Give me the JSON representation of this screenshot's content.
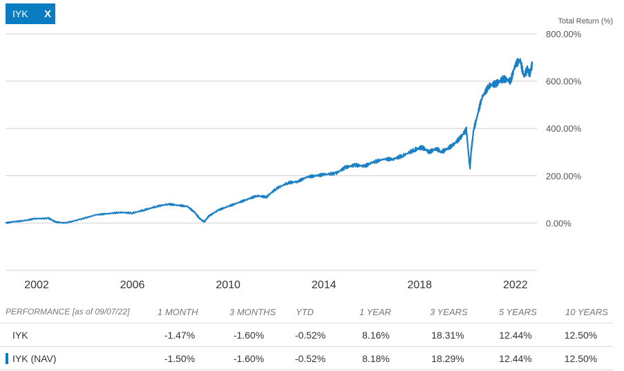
{
  "colors": {
    "accent": "#0a7cc2",
    "grid": "#cfcfcf",
    "line": "#1a7fc4"
  },
  "ticker_chip": {
    "label": "IYK",
    "close_label": "X",
    "close_icon": "close-icon"
  },
  "chart_data": {
    "type": "line",
    "title": "",
    "ylabel": "Total Return (%)",
    "xlabel": "",
    "x_ticks": [
      "2002",
      "2006",
      "2010",
      "2014",
      "2018",
      "2022"
    ],
    "y_ticks": [
      "800.00%",
      "600.00%",
      "400.00%",
      "200.00%",
      "0.00%"
    ],
    "y_tick_values": [
      800,
      600,
      400,
      200,
      0
    ],
    "ylim": [
      -200,
      800
    ],
    "xlim": [
      2000.7,
      2022.9
    ],
    "grid": true,
    "series": [
      {
        "name": "IYK",
        "x": [
          2000.7,
          2001.0,
          2001.5,
          2001.9,
          2002.5,
          2002.8,
          2003.2,
          2003.8,
          2004.5,
          2005.0,
          2005.5,
          2006.0,
          2006.5,
          2007.0,
          2007.5,
          2007.9,
          2008.3,
          2008.6,
          2008.8,
          2009.0,
          2009.2,
          2009.6,
          2010.0,
          2010.4,
          2010.8,
          2011.2,
          2011.6,
          2012.0,
          2012.5,
          2012.9,
          2013.3,
          2013.7,
          2014.0,
          2014.5,
          2014.9,
          2015.3,
          2015.7,
          2016.0,
          2016.5,
          2016.9,
          2017.3,
          2017.8,
          2018.1,
          2018.4,
          2018.7,
          2018.9,
          2019.1,
          2019.4,
          2019.7,
          2019.95,
          2020.1,
          2020.15,
          2020.25,
          2020.4,
          2020.6,
          2020.9,
          2021.2,
          2021.5,
          2021.8,
          2022.0,
          2022.2,
          2022.35,
          2022.5,
          2022.6,
          2022.7
        ],
        "y": [
          0,
          5,
          10,
          18,
          20,
          4,
          0,
          15,
          35,
          40,
          45,
          42,
          55,
          70,
          80,
          75,
          70,
          45,
          20,
          5,
          30,
          55,
          70,
          85,
          100,
          115,
          110,
          145,
          170,
          175,
          195,
          200,
          205,
          210,
          235,
          245,
          240,
          255,
          270,
          270,
          285,
          310,
          320,
          300,
          315,
          300,
          310,
          330,
          360,
          395,
          230,
          300,
          390,
          450,
          530,
          580,
          590,
          610,
          600,
          670,
          690,
          620,
          650,
          630,
          670
        ]
      }
    ]
  },
  "performance": {
    "title": "PERFORMANCE",
    "as_of": "[as of 09/07/22]",
    "columns": [
      "1 MONTH",
      "3 MONTHS",
      "YTD",
      "1 YEAR",
      "3 YEARS",
      "5 YEARS",
      "10 YEARS"
    ],
    "rows": [
      {
        "name": "IYK",
        "values": [
          "-1.47%",
          "-1.60%",
          "-0.52%",
          "8.16%",
          "18.31%",
          "12.44%",
          "12.50%"
        ]
      },
      {
        "name": "IYK (NAV)",
        "values": [
          "-1.50%",
          "-1.60%",
          "-0.52%",
          "8.18%",
          "18.29%",
          "12.44%",
          "12.50%"
        ]
      }
    ]
  }
}
